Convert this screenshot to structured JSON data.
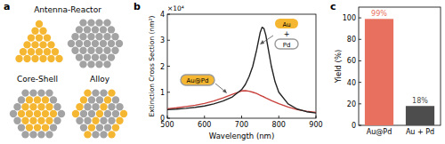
{
  "diagram": {
    "panel_label": "a",
    "items": [
      {
        "label": "Antenna-Reactor"
      },
      {
        "label": "Core-Shell"
      },
      {
        "label": "Alloy"
      }
    ]
  },
  "chart_data": [
    {
      "type": "line",
      "panel_label": "b",
      "x_label": "Wavelength (nm)",
      "y_label": "Extinction Cross Section (nm²)",
      "y_multiplier": "×10⁴",
      "x": [
        500,
        525,
        550,
        575,
        600,
        625,
        650,
        675,
        700,
        710,
        720,
        730,
        740,
        745,
        750,
        755,
        760,
        765,
        770,
        780,
        790,
        800,
        825,
        850,
        875,
        900
      ],
      "series": [
        {
          "color": "#c8413c",
          "values": [
            0.36,
            0.4,
            0.45,
            0.5,
            0.57,
            0.66,
            0.78,
            0.92,
            1.05,
            1.06,
            1.04,
            1.0,
            0.95,
            0.92,
            0.88,
            0.85,
            0.82,
            0.78,
            0.75,
            0.68,
            0.62,
            0.56,
            0.43,
            0.33,
            0.27,
            0.22
          ]
        },
        {
          "color": "#222222",
          "values": [
            0.33,
            0.35,
            0.38,
            0.42,
            0.47,
            0.55,
            0.66,
            0.82,
            1.1,
            1.3,
            1.6,
            2.0,
            2.6,
            2.95,
            3.3,
            3.5,
            3.45,
            3.2,
            2.8,
            2.0,
            1.4,
            1.0,
            0.55,
            0.35,
            0.25,
            0.2
          ]
        }
      ],
      "annotations": [
        {
          "text": "Au@Pd"
        },
        {
          "text": "Au"
        },
        {
          "text": "+"
        },
        {
          "text": "Pd"
        }
      ],
      "xlim": [
        500,
        900
      ],
      "xticks": [
        500,
        600,
        700,
        800,
        900
      ],
      "ylim": [
        0,
        4
      ],
      "yticks": [
        0,
        1,
        2,
        3,
        4
      ],
      "grid": false
    },
    {
      "type": "bar",
      "panel_label": "c",
      "y_label": "Yield (%)",
      "categories": [
        "Au@Pd",
        "Au + Pd"
      ],
      "values": [
        99,
        18
      ],
      "value_labels": [
        "99%",
        "18%"
      ],
      "colors": [
        "#e8705e",
        "#4d4d4d"
      ],
      "data_labels": true,
      "ylim": [
        0,
        110
      ],
      "yticks": [
        0,
        20,
        40,
        60,
        80,
        100
      ],
      "grid": false
    }
  ]
}
